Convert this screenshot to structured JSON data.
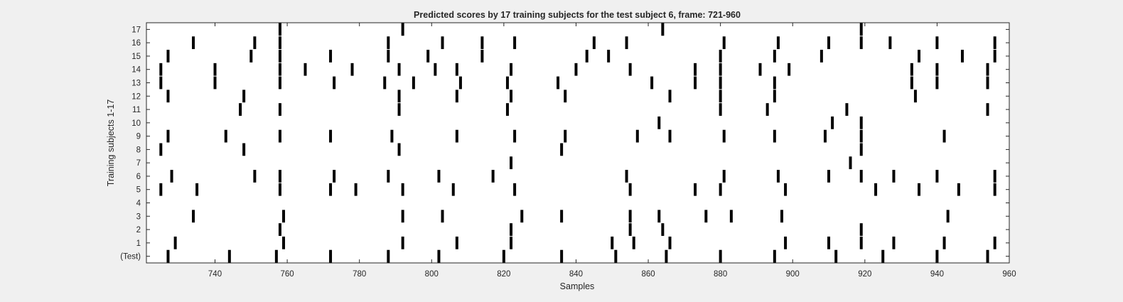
{
  "chart_data": {
    "type": "scatter",
    "marker": "vertical-bar",
    "title": "Predicted scores by 17 training subjects for the test subject 6, frame: 721-960",
    "xlabel": "Samples",
    "ylabel": "Training subjects 1-17",
    "xlim": [
      721,
      960
    ],
    "xticks": [
      740,
      760,
      780,
      800,
      820,
      840,
      860,
      880,
      900,
      920,
      940,
      960
    ],
    "ylim": [
      -0.5,
      17.5
    ],
    "ytick_labels": [
      "(Test)",
      "1",
      "2",
      "3",
      "4",
      "5",
      "6",
      "7",
      "8",
      "9",
      "10",
      "11",
      "12",
      "13",
      "14",
      "15",
      "16",
      "17"
    ],
    "grid": false,
    "colors": {
      "marks": "#000000",
      "axes_bg": "#ffffff",
      "figure_bg": "#f0f0f0",
      "axis": "#262626"
    },
    "rows": [
      {
        "label": "(Test)",
        "x": [
          727,
          744,
          757,
          772,
          788,
          802,
          820,
          836,
          851,
          865,
          880,
          895,
          912,
          925,
          940,
          954
        ]
      },
      {
        "label": "1",
        "x": [
          729,
          759,
          792,
          807,
          822,
          850,
          856,
          866,
          898,
          910,
          919,
          928,
          942,
          956
        ]
      },
      {
        "label": "2",
        "x": [
          758,
          822,
          855,
          864,
          919
        ]
      },
      {
        "label": "3",
        "x": [
          734,
          759,
          792,
          803,
          825,
          836,
          855,
          863,
          876,
          883,
          897,
          943
        ]
      },
      {
        "label": "4",
        "x": []
      },
      {
        "label": "5",
        "x": [
          725,
          735,
          758,
          772,
          779,
          792,
          806,
          823,
          855,
          873,
          880,
          898,
          923,
          935,
          946,
          956
        ]
      },
      {
        "label": "6",
        "x": [
          728,
          751,
          758,
          773,
          788,
          802,
          817,
          854,
          881,
          896,
          910,
          919,
          928,
          940,
          956
        ]
      },
      {
        "label": "7",
        "x": [
          822,
          916
        ]
      },
      {
        "label": "8",
        "x": [
          725,
          748,
          791,
          836,
          919
        ]
      },
      {
        "label": "9",
        "x": [
          727,
          743,
          758,
          772,
          789,
          807,
          823,
          837,
          857,
          866,
          881,
          895,
          909,
          919,
          942
        ]
      },
      {
        "label": "10",
        "x": [
          863,
          911,
          919
        ]
      },
      {
        "label": "11",
        "x": [
          747,
          758,
          791,
          821,
          880,
          893,
          915,
          954
        ]
      },
      {
        "label": "12",
        "x": [
          727,
          748,
          791,
          807,
          822,
          837,
          866,
          880,
          895,
          934
        ]
      },
      {
        "label": "13",
        "x": [
          725,
          740,
          758,
          773,
          787,
          795,
          808,
          821,
          835,
          861,
          873,
          880,
          895,
          933,
          940,
          954
        ]
      },
      {
        "label": "14",
        "x": [
          725,
          740,
          758,
          765,
          778,
          791,
          801,
          807,
          822,
          840,
          855,
          873,
          880,
          891,
          899,
          933,
          940,
          954
        ]
      },
      {
        "label": "15",
        "x": [
          727,
          750,
          758,
          772,
          788,
          799,
          814,
          843,
          849,
          880,
          895,
          908,
          935,
          947,
          956
        ]
      },
      {
        "label": "16",
        "x": [
          734,
          751,
          758,
          788,
          803,
          814,
          823,
          845,
          854,
          881,
          896,
          910,
          919,
          927,
          940,
          956
        ]
      },
      {
        "label": "17",
        "x": [
          758,
          792,
          864,
          919
        ]
      }
    ]
  }
}
